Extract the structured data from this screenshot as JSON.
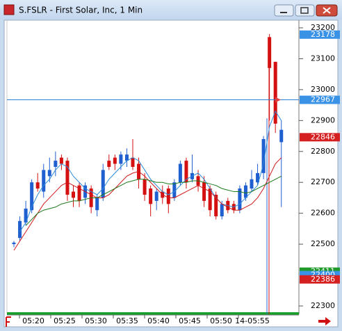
{
  "window": {
    "title": "S.FSLR - First Solar, Inc, 1 Min"
  },
  "chart_data": {
    "type": "candlestick",
    "up_color": "#1f5fd0",
    "down_color": "#d41010",
    "ylim": [
      22273,
      23227
    ],
    "yticks": [
      23200,
      23100,
      23000,
      22900,
      22800,
      22700,
      22600,
      22500,
      22300
    ],
    "xlabels": [
      "05:20",
      "05:25",
      "05:30",
      "05:35",
      "05:40",
      "05:45",
      "05:50",
      "14-05:55"
    ],
    "open": [
      22500,
      22520,
      22570,
      22610,
      22700,
      22670,
      22720,
      22750,
      22780,
      22770,
      22670,
      22690,
      22650,
      22680,
      22610,
      22650,
      22770,
      22780,
      22760,
      22770,
      22780,
      22760,
      22710,
      22680,
      22640,
      22670,
      22680,
      22650,
      22700,
      22770,
      22710,
      22720,
      22700,
      22680,
      22660,
      22590,
      22640,
      22630,
      22610,
      22650,
      22680,
      22700,
      22730,
      23170,
      23090,
      22830
    ],
    "close": [
      22505,
      22575,
      22615,
      22700,
      22680,
      22740,
      22740,
      22770,
      22760,
      22660,
      22650,
      22640,
      22690,
      22620,
      22650,
      22740,
      22750,
      22760,
      22790,
      22790,
      22750,
      22710,
      22660,
      22630,
      22670,
      22650,
      22630,
      22700,
      22760,
      22700,
      22730,
      22690,
      22640,
      22610,
      22590,
      22630,
      22610,
      22610,
      22680,
      22690,
      22710,
      22730,
      22840,
      23070,
      22890,
      22870
    ],
    "high": [
      22510,
      22590,
      22640,
      22710,
      22730,
      22760,
      22780,
      22800,
      22790,
      22780,
      22690,
      22700,
      22700,
      22690,
      22660,
      22760,
      22790,
      22790,
      22800,
      22810,
      22840,
      22780,
      22730,
      22690,
      22680,
      22690,
      22690,
      22710,
      22770,
      22780,
      22790,
      22740,
      22720,
      22690,
      22670,
      22640,
      22650,
      22640,
      22690,
      22700,
      22740,
      22760,
      22850,
      23180,
      23090,
      22900
    ],
    "low": [
      22490,
      22510,
      22560,
      22600,
      22670,
      22650,
      22700,
      22720,
      22740,
      22640,
      22620,
      22620,
      22630,
      22600,
      22590,
      22640,
      22740,
      22740,
      22740,
      22750,
      22740,
      22680,
      22640,
      22590,
      22610,
      22630,
      22600,
      22640,
      22690,
      22680,
      22700,
      22670,
      22620,
      22590,
      22580,
      22580,
      22600,
      22600,
      22600,
      22640,
      22670,
      22690,
      22710,
      22900,
      22860,
      22620
    ],
    "series": [
      {
        "color": "#2a8ad8",
        "values": [
          null,
          22540,
          22570,
          22620,
          22660,
          22690,
          22710,
          22740,
          22760,
          22750,
          22720,
          22700,
          22680,
          22670,
          22660,
          22680,
          22710,
          22730,
          22750,
          22770,
          22780,
          22770,
          22740,
          22710,
          22690,
          22670,
          22660,
          22670,
          22690,
          22710,
          22720,
          22730,
          22710,
          22680,
          22650,
          22630,
          22625,
          22620,
          22630,
          22650,
          22670,
          22690,
          22760,
          22880,
          22930,
          22900
        ]
      },
      {
        "color": "#d01818",
        "values": [
          22480,
          22510,
          22540,
          22570,
          22600,
          22630,
          22650,
          22670,
          22690,
          22700,
          22690,
          22680,
          22670,
          22660,
          22650,
          22650,
          22660,
          22680,
          22700,
          22720,
          22730,
          22735,
          22720,
          22700,
          22680,
          22660,
          22650,
          22650,
          22660,
          22670,
          22680,
          22690,
          22680,
          22670,
          22650,
          22630,
          22620,
          22610,
          22610,
          22620,
          22630,
          22650,
          22680,
          22720,
          22760,
          22780
        ]
      },
      {
        "color": "#1c7a1c",
        "values": [
          null,
          null,
          22560,
          22580,
          22600,
          22610,
          22615,
          22620,
          22630,
          22635,
          22640,
          22640,
          22645,
          22650,
          22650,
          22660,
          22670,
          22680,
          22690,
          22700,
          22705,
          22710,
          22710,
          22705,
          22700,
          22700,
          22695,
          22695,
          22700,
          22700,
          22705,
          22705,
          22700,
          22695,
          22690,
          22680,
          22675,
          22670,
          22670,
          22665,
          22670,
          22680,
          22690,
          22700,
          22710,
          22720
        ]
      }
    ],
    "crosshair": 22967,
    "price_tags": [
      {
        "value": 23178,
        "color": "#3a92e6"
      },
      {
        "value": 22967,
        "color": "#3a92e6"
      },
      {
        "value": 22846,
        "color": "#d42020"
      },
      {
        "value": 22411,
        "color": "#1f9a2a"
      },
      {
        "value": 22400,
        "color": "#3a92e6"
      },
      {
        "value": 22386,
        "color": "#d42020"
      }
    ]
  }
}
